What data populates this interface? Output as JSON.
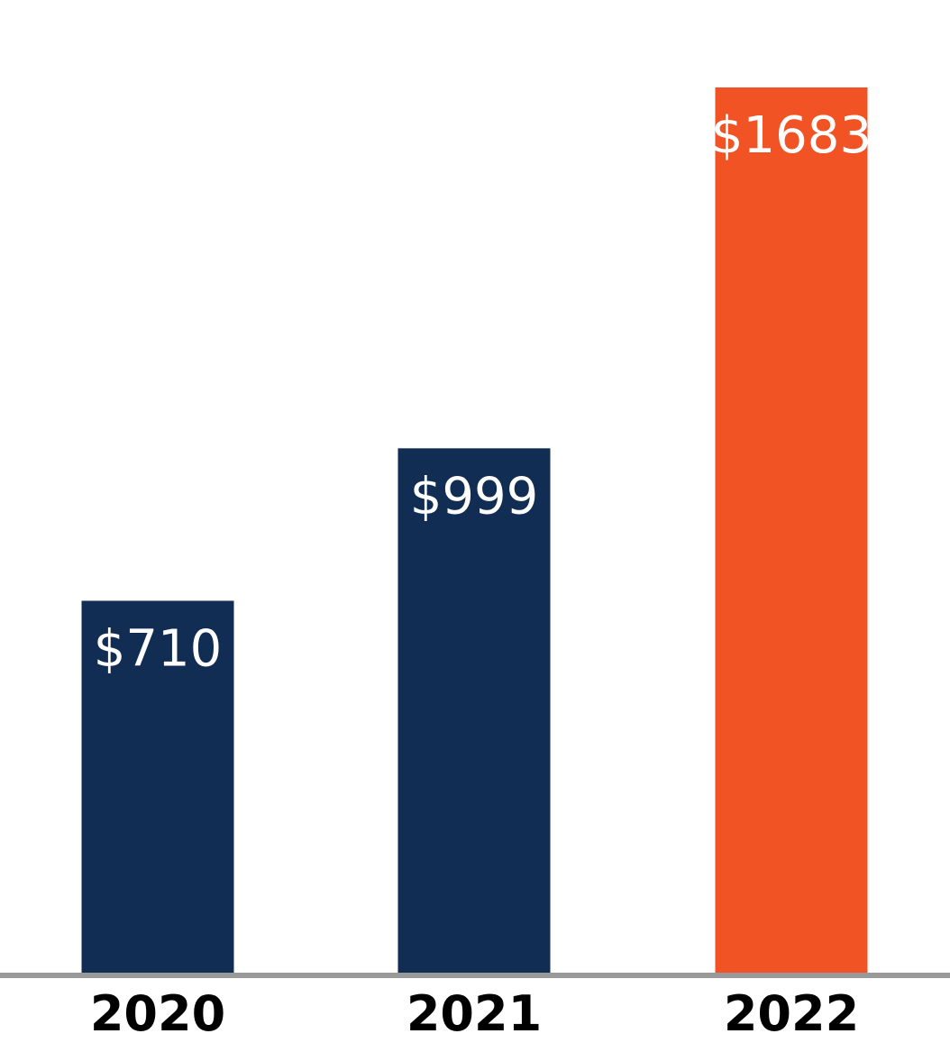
{
  "chart_data": {
    "type": "bar",
    "categories": [
      "2020",
      "2021",
      "2022"
    ],
    "values": [
      710,
      999,
      1683
    ],
    "value_labels": [
      "$710",
      "$999",
      "$1683"
    ],
    "bar_colors": [
      "#112d53",
      "#112d53",
      "#f15325"
    ],
    "axis_color": "#999999",
    "grid": false,
    "title": "",
    "xlabel": "",
    "ylabel": ""
  }
}
